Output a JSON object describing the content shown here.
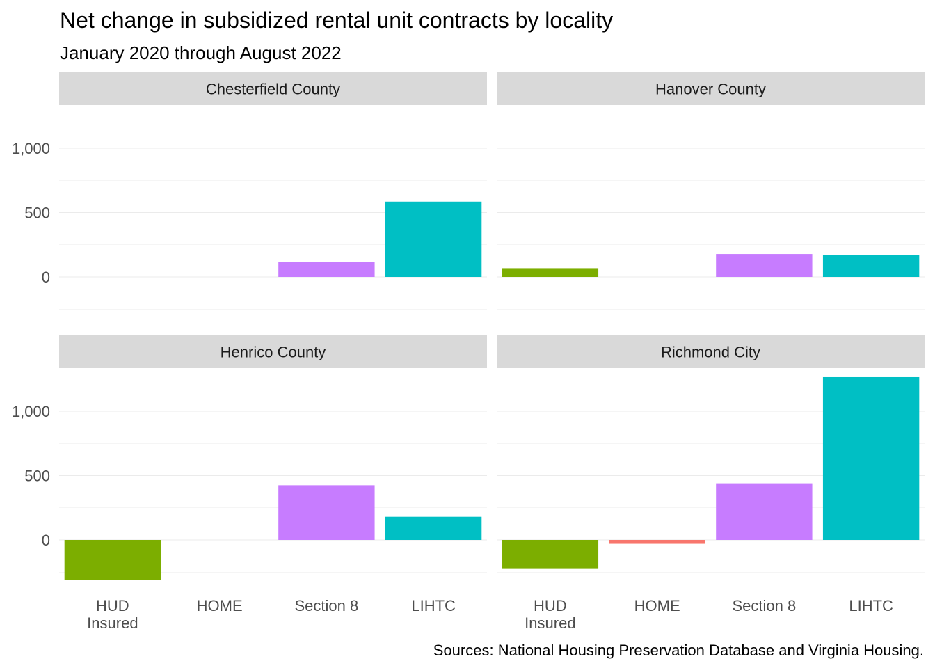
{
  "chart_data": {
    "type": "bar",
    "title": "Net change in subsidized rental unit contracts by locality",
    "subtitle": "January 2020 through August 2022",
    "caption": "Sources: National Housing Preservation Database and Virginia Housing.",
    "categories": [
      "HUD\nInsured",
      "HOME",
      "Section 8",
      "LIHTC"
    ],
    "y_ticks": [
      0,
      500,
      1000
    ],
    "y_tick_labels": [
      "0",
      "500",
      "1,000"
    ],
    "ylim": [
      -330,
      1275
    ],
    "grid": true,
    "legend": "none",
    "colors": {
      "HUD\nInsured": "#7CAE00",
      "HOME": "#F8766D",
      "Section 8": "#C77CFF",
      "LIHTC": "#00BFC4"
    },
    "strip_color": "#d9d9d9",
    "grid_color": "#ebebeb",
    "panels": [
      {
        "name": "Chesterfield County",
        "values": [
          0,
          0,
          118,
          585
        ]
      },
      {
        "name": "Hanover County",
        "values": [
          68,
          0,
          178,
          170
        ]
      },
      {
        "name": "Henrico County",
        "values": [
          -310,
          0,
          425,
          180
        ]
      },
      {
        "name": "Richmond City",
        "values": [
          -225,
          -30,
          440,
          1265
        ]
      }
    ]
  }
}
